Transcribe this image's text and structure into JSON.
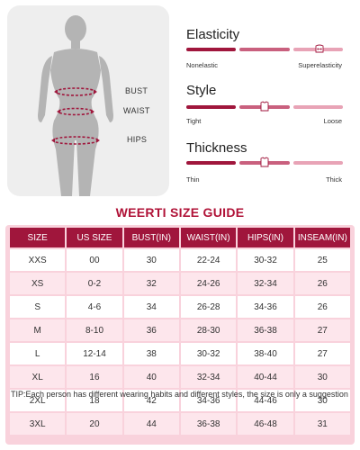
{
  "figure": {
    "measure_labels": [
      "BUST",
      "WAIST",
      "HIPS"
    ]
  },
  "properties": [
    {
      "name": "Elasticity",
      "left_label": "Nonelastic",
      "right_label": "Superelasticity",
      "level": 0.85,
      "icon": "stretch-arrows-icon"
    },
    {
      "name": "Style",
      "left_label": "Tight",
      "right_label": "Loose",
      "level": 0.5,
      "icon": "top-garment-icon"
    },
    {
      "name": "Thickness",
      "left_label": "Thin",
      "right_label": "Thick",
      "level": 0.5,
      "icon": "top-garment-icon"
    }
  ],
  "colors": {
    "accent": "#a0163c",
    "accent_light": "#c9607e",
    "accent_pale": "#e8a3b6",
    "title": "#b01237",
    "table_bg": "#f9d2dc",
    "row_alt": "#fde6ec",
    "figure_panel": "#eeeeee",
    "silhouette": "#b4b4b4"
  },
  "guide": {
    "title": "WEERTI SIZE GUIDE",
    "columns": [
      "SIZE",
      "US SIZE",
      "BUST(IN)",
      "WAIST(IN)",
      "HIPS(IN)",
      "INSEAM(IN)"
    ],
    "rows": [
      [
        "XXS",
        "00",
        "30",
        "22-24",
        "30-32",
        "25"
      ],
      [
        "XS",
        "0-2",
        "32",
        "24-26",
        "32-34",
        "26"
      ],
      [
        "S",
        "4-6",
        "34",
        "26-28",
        "34-36",
        "26"
      ],
      [
        "M",
        "8-10",
        "36",
        "28-30",
        "36-38",
        "27"
      ],
      [
        "L",
        "12-14",
        "38",
        "30-32",
        "38-40",
        "27"
      ],
      [
        "XL",
        "16",
        "40",
        "32-34",
        "40-44",
        "30"
      ],
      [
        "2XL",
        "18",
        "42",
        "34-36",
        "44-46",
        "30"
      ],
      [
        "3XL",
        "20",
        "44",
        "36-38",
        "46-48",
        "31"
      ]
    ],
    "tip": "TIP:Each person has different wearing habits and different styles, the size is only a suggestion"
  }
}
